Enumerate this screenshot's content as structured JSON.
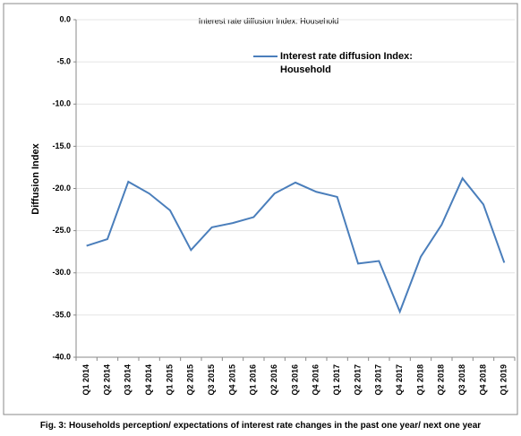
{
  "chart_data": {
    "type": "line",
    "title": "Interest rate diffusion Index: Household",
    "y_label": "Diffusion Index",
    "caption": "Fig. 3:  Households  perception/ expectations of interest rate changes in the past one year/ next one year",
    "categories": [
      "Q1 2014",
      "Q2 2014",
      "Q3 2014",
      "Q4 2014",
      "Q1 2015",
      "Q2 2015",
      "Q3 2015",
      "Q4 2015",
      "Q1 2016",
      "Q2 2016",
      "Q3 2016",
      "Q4 2016",
      "Q1 2017",
      "Q2 2017",
      "Q3 2017",
      "Q4 2017",
      "Q1 2018",
      "Q2 2018",
      "Q3 2018",
      "Q4 2018",
      "Q1 2019"
    ],
    "series": [
      {
        "name": "Interest rate diffusion Index: Household",
        "color": "#4a7ebb",
        "values": [
          -26.8,
          -26.0,
          -19.2,
          -20.6,
          -22.6,
          -27.3,
          -24.6,
          -24.1,
          -23.4,
          -20.6,
          -19.3,
          -20.4,
          -21.0,
          -28.9,
          -28.6,
          -34.6,
          -28.1,
          -24.3,
          -18.8,
          -21.9,
          -28.8
        ]
      }
    ],
    "ylim": [
      -40,
      0
    ],
    "yticks": [
      {
        "value": -40,
        "label": "-40.0"
      },
      {
        "value": -35,
        "label": "-35.0"
      },
      {
        "value": -30,
        "label": "-30.0"
      },
      {
        "value": -25,
        "label": "-25.0"
      },
      {
        "value": -20,
        "label": "-20.0"
      },
      {
        "value": -15,
        "label": "-15.0"
      },
      {
        "value": -10,
        "label": "-10.0"
      },
      {
        "value": -5,
        "label": "-5.0"
      },
      {
        "value": 0,
        "label": "0.0"
      }
    ],
    "grid": true,
    "legend": "top"
  }
}
